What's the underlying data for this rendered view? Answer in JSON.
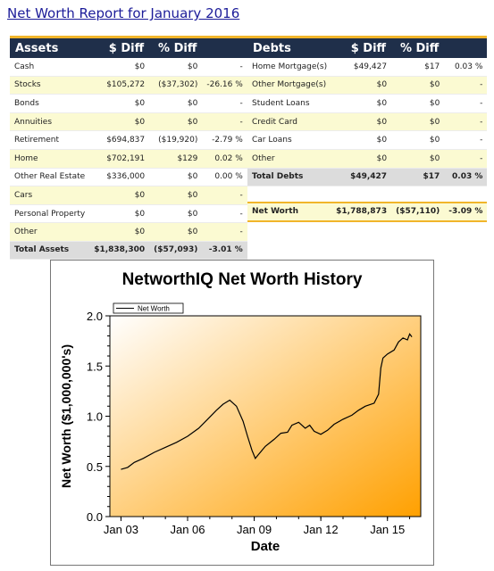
{
  "report": {
    "title": "Net Worth Report for January 2016"
  },
  "assets": {
    "headers": [
      "Assets",
      "$ Diff",
      "% Diff"
    ],
    "rows": [
      {
        "label": "Cash",
        "value": "$0",
        "diff": "$0",
        "pct": "-"
      },
      {
        "label": "Stocks",
        "value": "$105,272",
        "diff": "($37,302)",
        "pct": "-26.16 %"
      },
      {
        "label": "Bonds",
        "value": "$0",
        "diff": "$0",
        "pct": "-"
      },
      {
        "label": "Annuities",
        "value": "$0",
        "diff": "$0",
        "pct": "-"
      },
      {
        "label": "Retirement",
        "value": "$694,837",
        "diff": "($19,920)",
        "pct": "-2.79 %"
      },
      {
        "label": "Home",
        "value": "$702,191",
        "diff": "$129",
        "pct": "0.02 %"
      },
      {
        "label": "Other Real Estate",
        "value": "$336,000",
        "diff": "$0",
        "pct": "0.00 %"
      },
      {
        "label": "Cars",
        "value": "$0",
        "diff": "$0",
        "pct": "-"
      },
      {
        "label": "Personal Property",
        "value": "$0",
        "diff": "$0",
        "pct": "-"
      },
      {
        "label": "Other",
        "value": "$0",
        "diff": "$0",
        "pct": "-"
      }
    ],
    "total": {
      "label": "Total Assets",
      "value": "$1,838,300",
      "diff": "($57,093)",
      "pct": "-3.01 %"
    }
  },
  "debts": {
    "headers": [
      "Debts",
      "$ Diff",
      "% Diff"
    ],
    "rows": [
      {
        "label": "Home Mortgage(s)",
        "value": "$49,427",
        "diff": "$17",
        "pct": "0.03 %"
      },
      {
        "label": "Other Mortgage(s)",
        "value": "$0",
        "diff": "$0",
        "pct": "-"
      },
      {
        "label": "Student Loans",
        "value": "$0",
        "diff": "$0",
        "pct": "-"
      },
      {
        "label": "Credit Card",
        "value": "$0",
        "diff": "$0",
        "pct": "-"
      },
      {
        "label": "Car Loans",
        "value": "$0",
        "diff": "$0",
        "pct": "-"
      },
      {
        "label": "Other",
        "value": "$0",
        "diff": "$0",
        "pct": "-"
      }
    ],
    "total": {
      "label": "Total Debts",
      "value": "$49,427",
      "diff": "$17",
      "pct": "0.03 %"
    },
    "net_worth": {
      "label": "Net Worth",
      "value": "$1,788,873",
      "diff": "($57,110)",
      "pct": "-3.09 %"
    }
  },
  "colors": {
    "header_bg": "#1f2f4a",
    "header_accent": "#f1b52a",
    "alt_row": "#fbfad2",
    "total_row": "#dcdcdc",
    "link": "#1c1c99",
    "plot_gradient_start": "#ffffff",
    "plot_gradient_end": "#ffa000"
  },
  "chart_data": {
    "type": "line",
    "title": "NetworthIQ Net Worth History",
    "xlabel": "Date",
    "ylabel": "Net Worth ($1,000,000's)",
    "xticks": [
      "Jan 03",
      "Jan 06",
      "Jan 09",
      "Jan 12",
      "Jan 15"
    ],
    "yticks": [
      "0.0",
      "0.5",
      "1.0",
      "1.5",
      "2.0"
    ],
    "xlim": [
      2002.5,
      2016.5
    ],
    "ylim": [
      0,
      2
    ],
    "legend": "top-left",
    "grid": false,
    "series": [
      {
        "name": "Net Worth",
        "color": "#000000",
        "x": [
          2003.0,
          2003.3,
          2003.6,
          2004.0,
          2004.5,
          2005.0,
          2005.5,
          2006.0,
          2006.5,
          2006.9,
          2007.3,
          2007.6,
          2007.9,
          2008.2,
          2008.5,
          2008.7,
          2008.9,
          2009.05,
          2009.2,
          2009.5,
          2009.9,
          2010.2,
          2010.5,
          2010.7,
          2011.0,
          2011.3,
          2011.5,
          2011.7,
          2012.0,
          2012.3,
          2012.6,
          2013.0,
          2013.4,
          2013.7,
          2014.0,
          2014.4,
          2014.6,
          2014.7,
          2014.8,
          2015.0,
          2015.3,
          2015.5,
          2015.7,
          2015.9,
          2016.0,
          2016.1
        ],
        "y": [
          0.47,
          0.49,
          0.54,
          0.58,
          0.64,
          0.69,
          0.74,
          0.8,
          0.88,
          0.97,
          1.06,
          1.12,
          1.16,
          1.1,
          0.95,
          0.8,
          0.66,
          0.58,
          0.62,
          0.7,
          0.77,
          0.83,
          0.84,
          0.91,
          0.94,
          0.88,
          0.91,
          0.85,
          0.82,
          0.86,
          0.92,
          0.97,
          1.01,
          1.06,
          1.1,
          1.13,
          1.22,
          1.48,
          1.58,
          1.62,
          1.66,
          1.74,
          1.78,
          1.76,
          1.82,
          1.79
        ]
      }
    ]
  }
}
